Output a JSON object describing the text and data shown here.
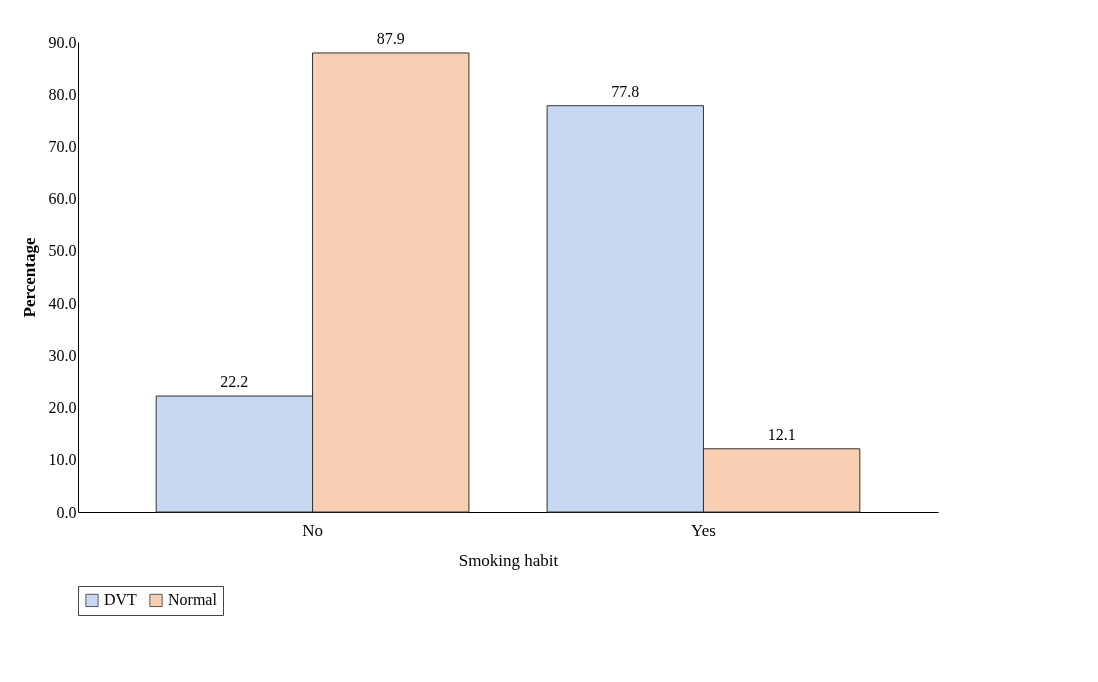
{
  "chart_data": {
    "type": "bar",
    "xlabel": "Smoking habit",
    "ylabel": "Percentage",
    "categories": [
      "No",
      "Yes"
    ],
    "series": [
      {
        "name": "DVT",
        "color": "#c9d8f2",
        "values": [
          22.2,
          77.8
        ]
      },
      {
        "name": "Normal",
        "color": "#f9cfb3",
        "values": [
          87.9,
          12.1
        ]
      }
    ],
    "ylim": [
      0,
      90
    ],
    "yticks": [
      {
        "value": 0,
        "label": "0.0"
      },
      {
        "value": 10,
        "label": "10.0"
      },
      {
        "value": 20,
        "label": "20.0"
      },
      {
        "value": 30,
        "label": "30.0"
      },
      {
        "value": 40,
        "label": "40.0"
      },
      {
        "value": 50,
        "label": "50.0"
      },
      {
        "value": 60,
        "label": "60.0"
      },
      {
        "value": 70,
        "label": "70.0"
      },
      {
        "value": 80,
        "label": "80.0"
      },
      {
        "value": 90,
        "label": "90.0"
      }
    ],
    "data_labels": true,
    "grid": false,
    "legend": "bottom"
  }
}
